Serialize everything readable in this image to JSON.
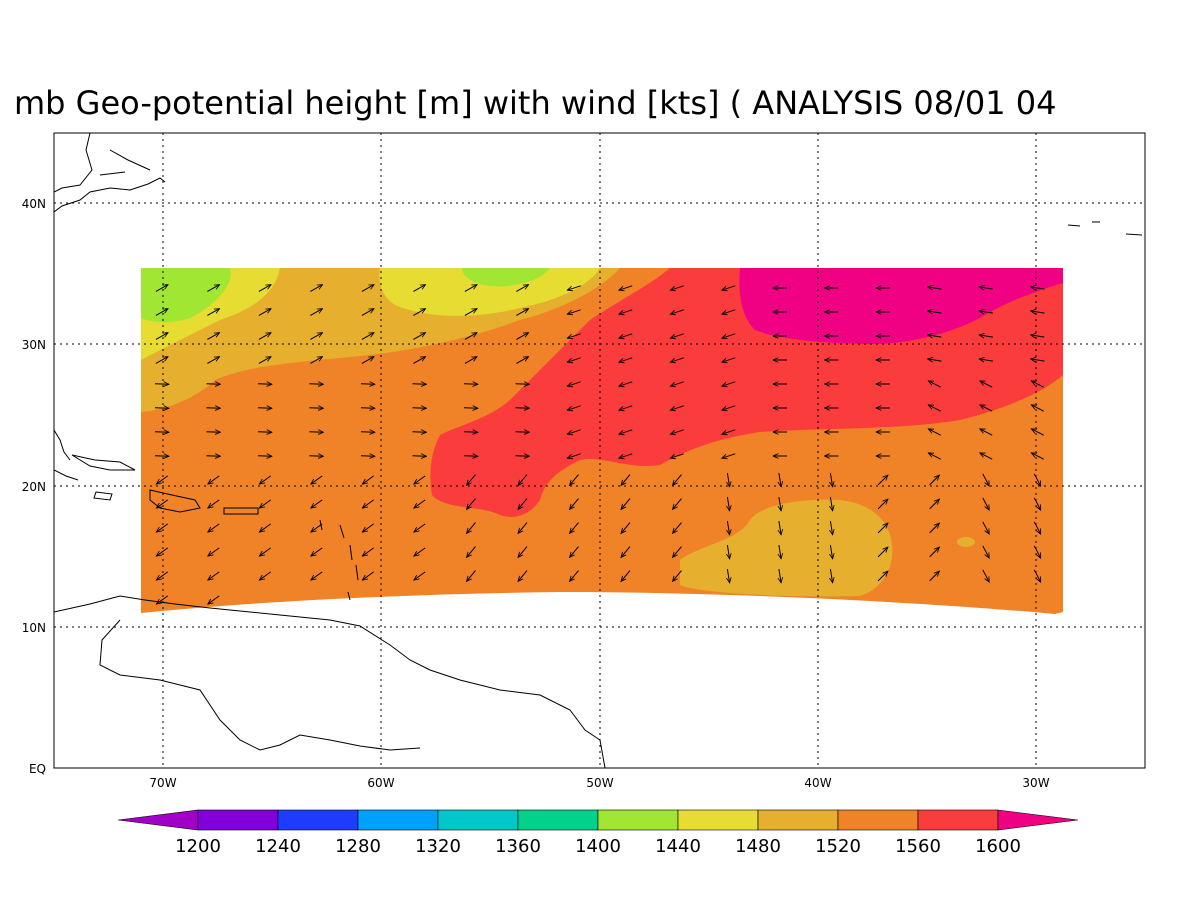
{
  "title": "mb Geo-potential height [m] with wind [kts] ( ANALYSIS 08/01 04",
  "lat_labels": [
    "40N",
    "30N",
    "20N",
    "10N",
    "EQ"
  ],
  "lon_labels": [
    "70W",
    "60W",
    "50W",
    "40W",
    "30W"
  ],
  "colorbar": {
    "labels": [
      "1200",
      "1240",
      "1280",
      "1320",
      "1360",
      "1400",
      "1440",
      "1480",
      "1520",
      "1560",
      "1600"
    ],
    "colors": [
      "#a000c8",
      "#8200dc",
      "#1e3cff",
      "#00a0ff",
      "#00c8c8",
      "#00d28c",
      "#a0e632",
      "#e6dc32",
      "#e6af2d",
      "#f08228",
      "#fa3c3c",
      "#f00082"
    ]
  },
  "field_colors": {
    "c1440": "#a0e632",
    "c1480": "#e6dc32",
    "c1520": "#e6af2d",
    "c1560": "#f08228",
    "c1600": "#fa3c3c",
    "c1640": "#f00082"
  }
}
